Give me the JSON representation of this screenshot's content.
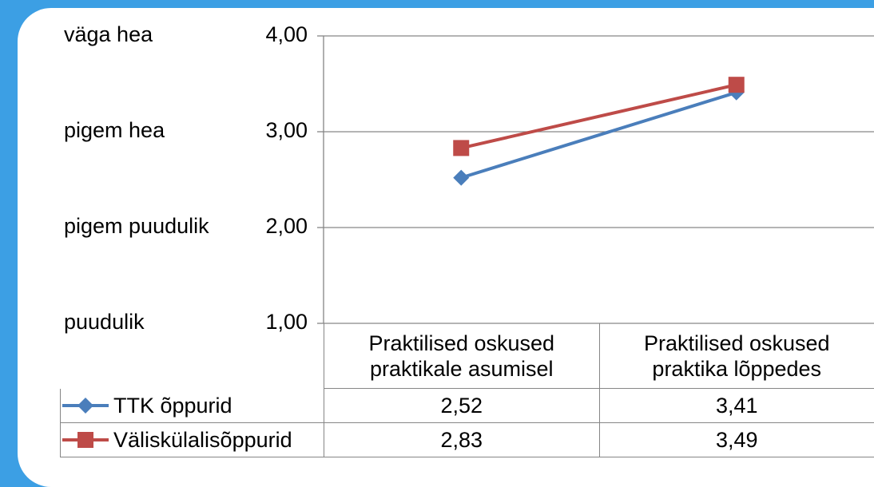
{
  "chart_data": {
    "type": "line",
    "categories": [
      "Praktilised oskused praktikale asumisel",
      "Praktilised oskused praktika lõppedes"
    ],
    "series": [
      {
        "name": "TTK õppurid",
        "color": "#4a7ebb",
        "marker": "diamond",
        "values": [
          2.52,
          3.41
        ],
        "value_labels": [
          "2,52",
          "3,41"
        ]
      },
      {
        "name": "Väliskülalisõppurid",
        "color": "#be4b48",
        "marker": "square",
        "values": [
          2.83,
          3.49
        ],
        "value_labels": [
          "2,83",
          "3,49"
        ]
      }
    ],
    "ylim": [
      1,
      4
    ],
    "yticks": [
      {
        "value": 1,
        "label": "1,00"
      },
      {
        "value": 2,
        "label": "2,00"
      },
      {
        "value": 3,
        "label": "3,00"
      },
      {
        "value": 4,
        "label": "4,00"
      }
    ],
    "y_level_labels": [
      "puudulik",
      "pigem puudulik",
      "pigem hea",
      "väga hea"
    ],
    "grid": true,
    "data_table": true
  }
}
